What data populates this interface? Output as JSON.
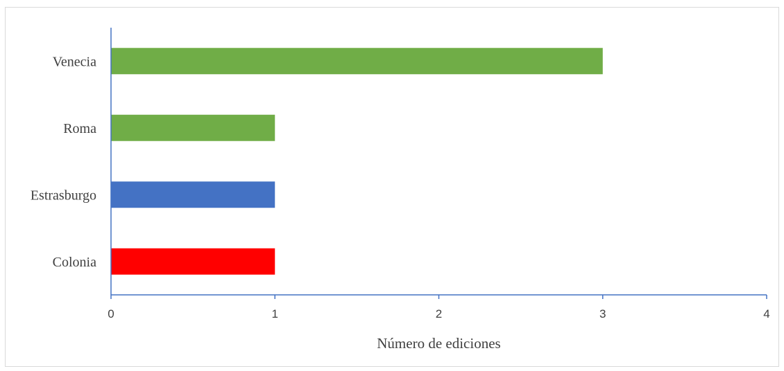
{
  "chart_data": {
    "type": "bar",
    "orientation": "horizontal",
    "categories": [
      "Colonia",
      "Estrasburgo",
      "Roma",
      "Venecia"
    ],
    "values": [
      1,
      1,
      1,
      3
    ],
    "bar_colors": [
      "#ff0000",
      "#4472c4",
      "#70ad47",
      "#70ad47"
    ],
    "xlabel": "Número de ediciones",
    "xlim": [
      0,
      4
    ],
    "xticks": [
      "0",
      "1",
      "2",
      "3",
      "4"
    ],
    "axis_color": "#4472c4",
    "grid": false,
    "legend": "none"
  }
}
